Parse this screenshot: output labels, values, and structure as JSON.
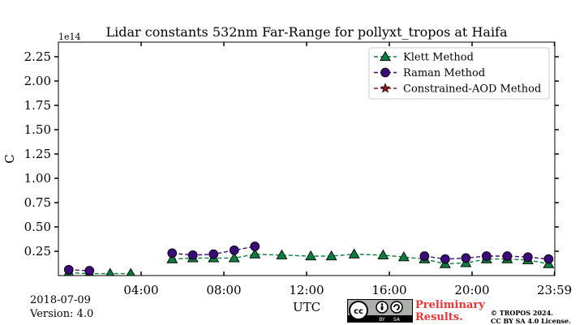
{
  "chart_data": {
    "type": "line",
    "title": "Lidar constants 532nm Far-Range for pollyxt_tropos at Haifa",
    "xlabel": "UTC",
    "ylabel": "C",
    "y_offset_text": "1e14",
    "x_range_hours": [
      0,
      24
    ],
    "xticks": [
      {
        "hour": 4,
        "label": "04:00"
      },
      {
        "hour": 8,
        "label": "08:00"
      },
      {
        "hour": 12,
        "label": "12:00"
      },
      {
        "hour": 16,
        "label": "16:00"
      },
      {
        "hour": 20,
        "label": "20:00"
      },
      {
        "hour": 23.983,
        "label": "23:59"
      }
    ],
    "ylim": [
      0.0,
      2.4
    ],
    "yticks": [
      0.25,
      0.5,
      0.75,
      1.0,
      1.25,
      1.5,
      1.75,
      2.0,
      2.25
    ],
    "ytick_labels": [
      "0.25",
      "0.50",
      "0.75",
      "1.00",
      "1.25",
      "1.50",
      "1.75",
      "2.00",
      "2.25"
    ],
    "grid": false,
    "legend_position": "top-right",
    "series": [
      {
        "name": "Klett Method",
        "color": "#0b7d3e",
        "marker": "triangle",
        "segments": [
          [
            [
              0.5,
              0.03
            ],
            [
              1.5,
              0.02
            ],
            [
              2.5,
              0.02
            ],
            [
              3.5,
              0.02
            ]
          ],
          [
            [
              5.5,
              0.17
            ],
            [
              6.5,
              0.18
            ],
            [
              7.5,
              0.18
            ],
            [
              8.5,
              0.18
            ],
            [
              9.5,
              0.22
            ],
            [
              10.8,
              0.21
            ],
            [
              12.2,
              0.2
            ],
            [
              13.2,
              0.2
            ],
            [
              14.3,
              0.22
            ],
            [
              15.7,
              0.21
            ],
            [
              16.7,
              0.19
            ],
            [
              17.7,
              0.17
            ],
            [
              18.7,
              0.12
            ],
            [
              19.7,
              0.13
            ],
            [
              20.7,
              0.17
            ],
            [
              21.7,
              0.17
            ],
            [
              22.7,
              0.16
            ],
            [
              23.7,
              0.12
            ]
          ]
        ]
      },
      {
        "name": "Raman Method",
        "color": "#3d0a7a",
        "marker": "circle",
        "segments": [
          [
            [
              0.5,
              0.06
            ],
            [
              1.5,
              0.05
            ]
          ],
          [
            [
              5.5,
              0.23
            ],
            [
              6.5,
              0.21
            ],
            [
              7.5,
              0.22
            ],
            [
              8.5,
              0.26
            ],
            [
              9.5,
              0.3
            ]
          ],
          [
            [
              17.7,
              0.2
            ],
            [
              18.7,
              0.17
            ],
            [
              19.7,
              0.18
            ],
            [
              20.7,
              0.2
            ],
            [
              21.7,
              0.2
            ],
            [
              22.7,
              0.19
            ],
            [
              23.7,
              0.17
            ]
          ]
        ]
      },
      {
        "name": "Constrained-AOD Method",
        "color": "#8b1a1a",
        "marker": "star",
        "segments": []
      }
    ]
  },
  "footer": {
    "date": "2018-07-09",
    "version": "Version: 4.0",
    "preliminary": "Preliminary",
    "results": "Results.",
    "copyright": "© TROPOS 2024.",
    "license": "CC BY SA 4.0 License."
  },
  "cc_badge": {
    "cc": "cc",
    "by": "BY",
    "sa": "SA"
  }
}
